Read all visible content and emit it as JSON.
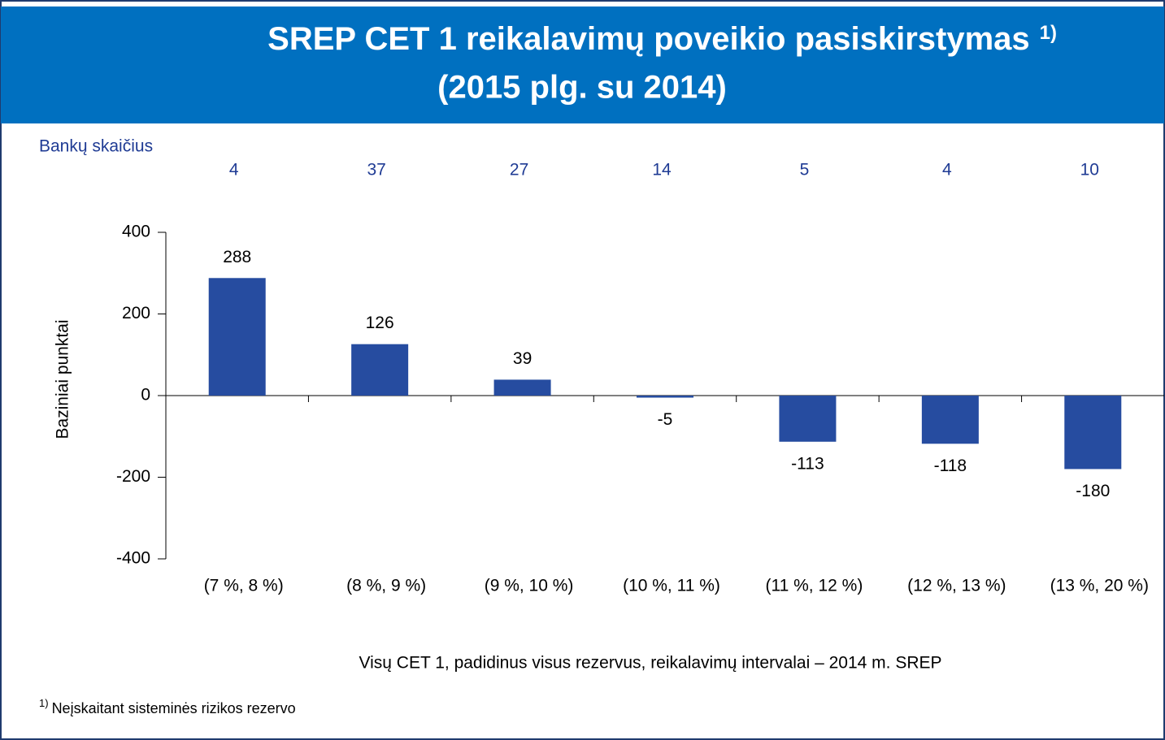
{
  "chart_data": {
    "type": "bar",
    "title": "SREP CET 1 reikalavimų poveikio pasiskirstymas",
    "subtitle": "(2015 plg. su 2014)",
    "bank_counts": {
      "label": "Bankų skaičius",
      "values": [
        4,
        37,
        27,
        14,
        5,
        4,
        10
      ]
    },
    "y_label": "Baziniai punktai",
    "x_label": "Visų CET 1, padidinus visus rezervus, reikalavimų intervalai – 2014 m. SREP",
    "categories": [
      "(7 %, 8 %)",
      "(8 %, 9 %)",
      "(9 %, 10 %)",
      "(10 %, 11 %)",
      "(11 %, 12 %)",
      "(12 %, 13 %)",
      "(13 %, 20 %)"
    ],
    "values": [
      288,
      126,
      39,
      -5,
      -113,
      -118,
      -180
    ],
    "color": "#264ca0",
    "ylim": [
      -400,
      400
    ],
    "yticks": [
      -400,
      -200,
      0,
      200,
      400
    ],
    "footnote": {
      "marker": "1)",
      "text": "Neįskaitant sisteminės rizikos rezervo"
    }
  }
}
